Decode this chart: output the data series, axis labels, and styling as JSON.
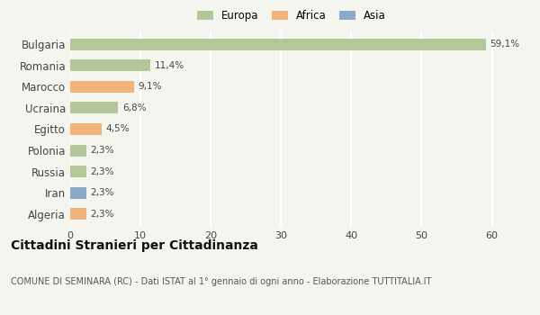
{
  "categories": [
    "Algeria",
    "Iran",
    "Russia",
    "Polonia",
    "Egitto",
    "Ucraina",
    "Marocco",
    "Romania",
    "Bulgaria"
  ],
  "values": [
    2.3,
    2.3,
    2.3,
    2.3,
    4.5,
    6.8,
    9.1,
    11.4,
    59.1
  ],
  "labels": [
    "2,3%",
    "2,3%",
    "2,3%",
    "2,3%",
    "4,5%",
    "6,8%",
    "9,1%",
    "11,4%",
    "59,1%"
  ],
  "colors": [
    "#f0a868",
    "#7b9cc4",
    "#a8bf8a",
    "#a8bf8a",
    "#f0a868",
    "#a8bf8a",
    "#f0a868",
    "#a8bf8a",
    "#a8bf8a"
  ],
  "legend": [
    {
      "label": "Europa",
      "color": "#a8bf8a"
    },
    {
      "label": "Africa",
      "color": "#f0a868"
    },
    {
      "label": "Asia",
      "color": "#7b9cc4"
    }
  ],
  "title": "Cittadini Stranieri per Cittadinanza",
  "subtitle": "COMUNE DI SEMINARA (RC) - Dati ISTAT al 1° gennaio di ogni anno - Elaborazione TUTTITALIA.IT",
  "xlim": [
    0,
    63
  ],
  "xticks": [
    0,
    10,
    20,
    30,
    40,
    50,
    60
  ],
  "background_color": "#f5f5f0",
  "grid_color": "#ffffff",
  "bar_height": 0.55
}
